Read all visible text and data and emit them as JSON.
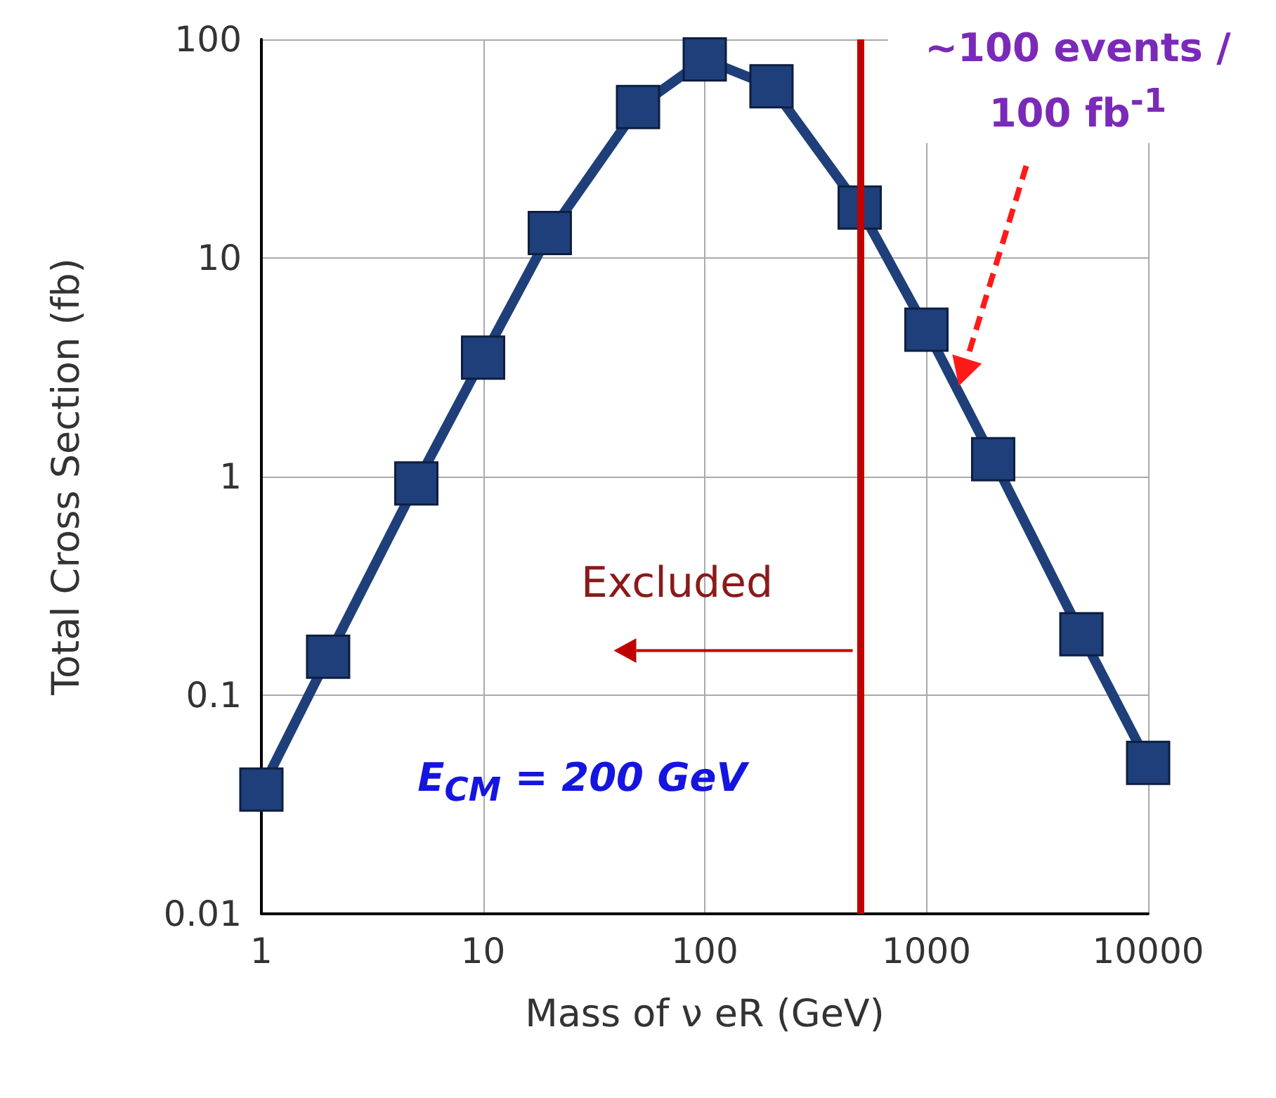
{
  "chart_data": {
    "type": "line",
    "xlabel": "Mass of ν eR (GeV)",
    "ylabel": "Total Cross Section (fb)",
    "x": [
      1,
      2,
      5,
      10,
      20,
      50,
      100,
      200,
      500,
      1000,
      2000,
      5000,
      10000
    ],
    "series": [
      {
        "color": "#1f3f7a",
        "values": [
          0.037,
          0.15,
          0.93,
          3.5,
          13,
          49,
          81,
          61,
          17,
          4.7,
          1.2,
          0.19,
          0.049
        ]
      }
    ],
    "log": "xy",
    "xlim": [
      1,
      10000
    ],
    "xticks": [
      1,
      10,
      100,
      1000,
      10000
    ],
    "ylim": [
      0.01,
      100
    ],
    "yticks": [
      0.01,
      0.1,
      1,
      10,
      100
    ],
    "grid": true,
    "marker": "square",
    "line_style": "solid",
    "ref_lines": [
      {
        "axis": "x",
        "value": 500,
        "color": "#c00000"
      }
    ],
    "annotations": [
      {
        "text": "Excluded",
        "x": 500,
        "y": 0.16
      },
      "E$_{CM}$ = 200 GeV",
      "~100 events / 100 fb$^{-1}$"
    ]
  }
}
